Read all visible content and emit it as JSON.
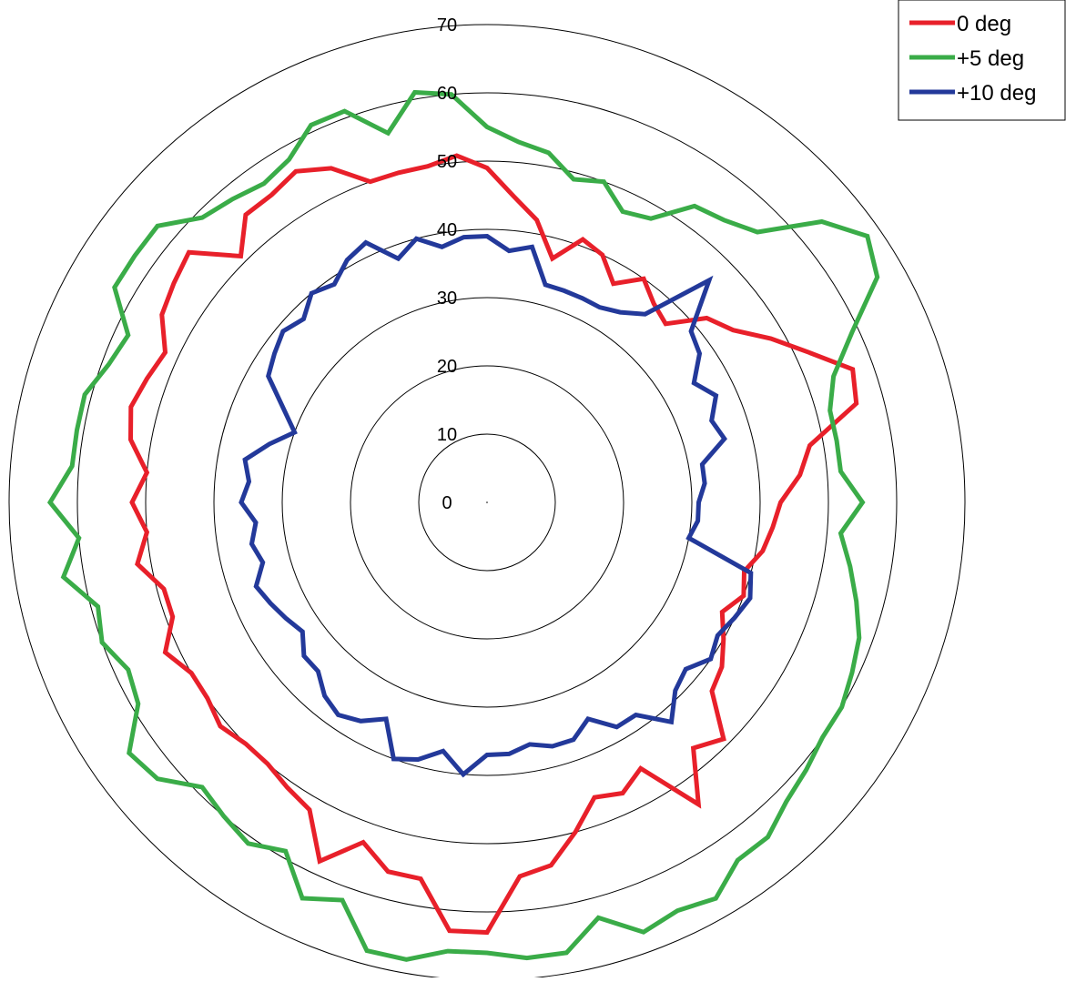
{
  "chart_data": {
    "type": "radar",
    "title": "",
    "r_range": [
      0,
      70
    ],
    "r_ticks": [
      "0",
      "10",
      "20",
      "30",
      "40",
      "50",
      "60",
      "70"
    ],
    "grid": true,
    "legend_position": "top-right",
    "series": [
      {
        "name": "0 deg",
        "color": "#e8202a",
        "values": [
          49,
          45,
          42,
          37,
          41,
          40,
          37,
          40,
          38,
          37,
          42,
          44,
          48,
          52,
          57,
          56,
          48,
          46,
          43,
          42,
          41,
          39,
          40,
          38,
          40,
          42,
          43,
          49,
          47,
          54,
          45,
          47,
          46,
          50,
          54,
          55,
          63,
          63,
          56,
          56,
          53,
          58,
          52,
          51,
          50,
          50,
          51,
          50,
          50,
          52,
          49,
          49,
          52,
          50,
          52,
          50,
          53,
          54,
          53,
          52,
          55,
          56,
          57,
          51,
          55,
          55,
          56,
          54,
          50,
          50,
          50,
          51
        ]
      },
      {
        "name": "+5 deg",
        "color": "#3aac48",
        "values": [
          55,
          53,
          52,
          49,
          50,
          47,
          48,
          53,
          54,
          56,
          64,
          68,
          66,
          59,
          54,
          52,
          52,
          52,
          55,
          52,
          54,
          56,
          58,
          59,
          60,
          60,
          61,
          62,
          64,
          64,
          67,
          66,
          67,
          63,
          67,
          67,
          66,
          66,
          68,
          68,
          62,
          64,
          59,
          61,
          60,
          59,
          63,
          64,
          59,
          58,
          60,
          59,
          63,
          60,
          64,
          61,
          61,
          61,
          59,
          58,
          63,
          63,
          63,
          59,
          58,
          57,
          58,
          61,
          61,
          56,
          61,
          60
        ]
      },
      {
        "name": "+10 deg",
        "color": "#23399a",
        "values": [
          39,
          37,
          38,
          33,
          33,
          33,
          33,
          34,
          36,
          46,
          39,
          38,
          35,
          37,
          35,
          36,
          32,
          32,
          31,
          31,
          30,
          40,
          41,
          40,
          39,
          40,
          38,
          39,
          42,
          38,
          38,
          35,
          37,
          37,
          36,
          37,
          37,
          40,
          37,
          39,
          40,
          35,
          37,
          38,
          37,
          35,
          35,
          33,
          34,
          35,
          36,
          34,
          35,
          34,
          36,
          35,
          36,
          33,
          30,
          33,
          37,
          38,
          39,
          38,
          40,
          39,
          41,
          42,
          38,
          40,
          38,
          39
        ]
      }
    ]
  }
}
